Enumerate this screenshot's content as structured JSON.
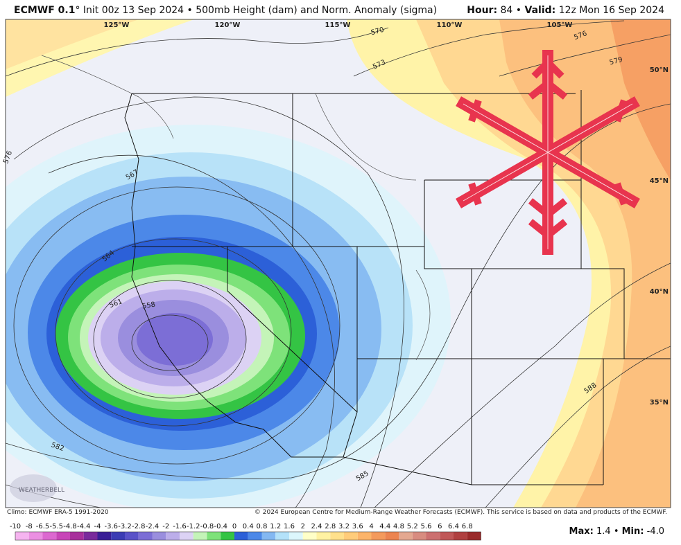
{
  "header": {
    "model": "ECMWF 0.1",
    "degree": "°",
    "description": " Init 00z 13 Sep 2024 • 500mb Height (dam) and Norm. Anomaly (sigma)",
    "hour_label": "Hour:",
    "hour": "84",
    "separator": "•",
    "valid_label": "Valid:",
    "valid": "12z Mon 16 Sep 2024"
  },
  "longitudes": [
    "125°W",
    "120°W",
    "115°W",
    "110°W",
    "105°W"
  ],
  "latitudes": [
    "50°N",
    "45°N",
    "40°N",
    "35°N"
  ],
  "contour_labels": [
    "570",
    "573",
    "576",
    "579",
    "576",
    "567",
    "564",
    "561",
    "558",
    "582",
    "585",
    "588"
  ],
  "logo": "WEATHERBELL",
  "footer": {
    "climo": "Climo: ECMWF ERA-5 1991-2020",
    "copyright": "© 2024 European Centre for Medium-Range Weather Forecasts (ECMWF). This service is based on data and products of the ECMWF."
  },
  "colorbar": {
    "labels": [
      "-10",
      "-8",
      "-6.5",
      "-5.5",
      "-4.8",
      "-4.4",
      "-4",
      "-3.6",
      "-3.2",
      "-2.8",
      "-2.4",
      "-2",
      "-1.6",
      "-1.2",
      "-0.8",
      "-0.4",
      "0",
      "0.4",
      "0.8",
      "1.2",
      "1.6",
      "2",
      "2.4",
      "2.8",
      "3.2",
      "3.6",
      "4",
      "4.4",
      "4.8",
      "5.2",
      "5.6",
      "6",
      "6.4",
      "6.8"
    ],
    "colors": [
      "#f6b4f0",
      "#eb8fe2",
      "#dc68d0",
      "#c845b8",
      "#a8309c",
      "#7a2a9c",
      "#3a1e96",
      "#3c3cb4",
      "#5a52c8",
      "#7c6ed6",
      "#9a8ede",
      "#bcaeea",
      "#dcd2f4",
      "#c4f4b8",
      "#7ee27a",
      "#34c444",
      "#2c60d8",
      "#4c88e8",
      "#84b8f2",
      "#b4e2fa",
      "#dcf6fc",
      "#ffffc8",
      "#fff2a2",
      "#ffe08c",
      "#ffcc7a",
      "#fcb46a",
      "#f49a5c",
      "#ec8450",
      "#e4a890",
      "#d88c80",
      "#cc7070",
      "#c05858",
      "#b04040",
      "#9a2a2a"
    ]
  },
  "max_label": "Max:",
  "max": "1.4",
  "min_sep": "•",
  "min_label": "Min:",
  "min": "-4.0"
}
